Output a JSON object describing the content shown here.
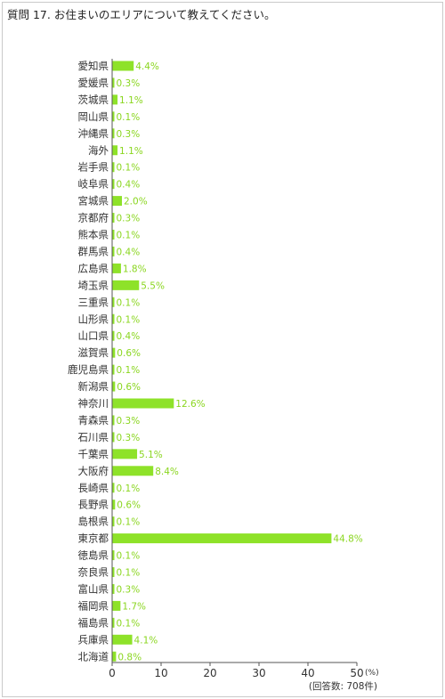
{
  "chart_data": {
    "type": "bar",
    "orientation": "horizontal",
    "title": "質問 17. お住まいのエリアについて教えてください。",
    "categories": [
      "愛知県",
      "愛媛県",
      "茨城県",
      "岡山県",
      "沖縄県",
      "海外",
      "岩手県",
      "岐阜県",
      "宮城県",
      "京都府",
      "熊本県",
      "群馬県",
      "広島県",
      "埼玉県",
      "三重県",
      "山形県",
      "山口県",
      "滋賀県",
      "鹿児島県",
      "新潟県",
      "神奈川",
      "青森県",
      "石川県",
      "千葉県",
      "大阪府",
      "長崎県",
      "長野県",
      "島根県",
      "東京都",
      "徳島県",
      "奈良県",
      "富山県",
      "福岡県",
      "福島県",
      "兵庫県",
      "北海道"
    ],
    "values": [
      4.4,
      0.3,
      1.1,
      0.1,
      0.3,
      1.1,
      0.1,
      0.4,
      2.0,
      0.3,
      0.1,
      0.4,
      1.8,
      5.5,
      0.1,
      0.1,
      0.4,
      0.6,
      0.1,
      0.6,
      12.6,
      0.3,
      0.3,
      5.1,
      8.4,
      0.1,
      0.6,
      0.1,
      44.8,
      0.1,
      0.1,
      0.3,
      1.7,
      0.1,
      4.1,
      0.8
    ],
    "value_labels": [
      "4.4%",
      "0.3%",
      "1.1%",
      "0.1%",
      "0.3%",
      "1.1%",
      "0.1%",
      "0.4%",
      "2.0%",
      "0.3%",
      "0.1%",
      "0.4%",
      "1.8%",
      "5.5%",
      "0.1%",
      "0.1%",
      "0.4%",
      "0.6%",
      "0.1%",
      "0.6%",
      "12.6%",
      "0.3%",
      "0.3%",
      "5.1%",
      "8.4%",
      "0.1%",
      "0.6%",
      "0.1%",
      "44.8%",
      "0.1%",
      "0.1%",
      "0.3%",
      "1.7%",
      "0.1%",
      "4.1%",
      "0.8%"
    ],
    "xlim": [
      0,
      50
    ],
    "xticks": [
      "0",
      "10",
      "20",
      "30",
      "40",
      "50"
    ],
    "x_unit": "(%)",
    "note": "(回答数: 708件)",
    "grid": false,
    "bar_color": "#8ee229",
    "label_color": "#8ad61f"
  }
}
